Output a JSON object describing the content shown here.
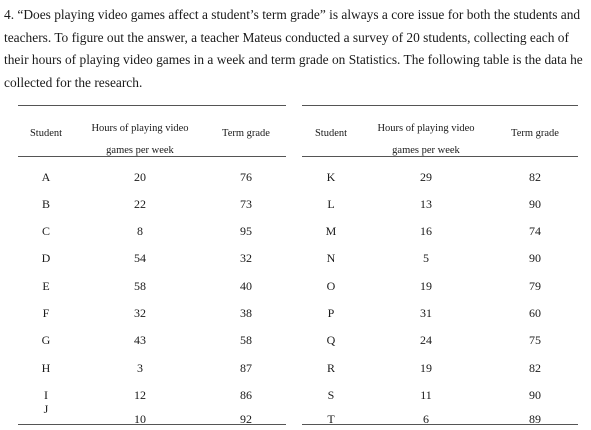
{
  "question": {
    "text": "4. “Does playing video games affect a student’s term grade” is always a core issue for both the students and teachers. To figure out the answer, a teacher Mateus conducted a survey of 20 students, collecting each of their hours of playing video games in a week and term grade on Statistics. The following table is the data he collected for the research."
  },
  "table": {
    "headers": {
      "student": "Student",
      "hours_line1": "Hours of playing video",
      "hours_line2": "games per week",
      "grade": "Term grade"
    },
    "left_rows": [
      {
        "student": "A",
        "hours": "20",
        "grade": "76"
      },
      {
        "student": "B",
        "hours": "22",
        "grade": "73"
      },
      {
        "student": "C",
        "hours": "8",
        "grade": "95"
      },
      {
        "student": "D",
        "hours": "54",
        "grade": "32"
      },
      {
        "student": "E",
        "hours": "58",
        "grade": "40"
      },
      {
        "student": "F",
        "hours": "32",
        "grade": "38"
      },
      {
        "student": "G",
        "hours": "43",
        "grade": "58"
      },
      {
        "student": "H",
        "hours": "3",
        "grade": "87"
      },
      {
        "student": "I",
        "hours": "12",
        "grade": "86"
      },
      {
        "student": "J",
        "hours": "10",
        "grade": "92"
      }
    ],
    "right_rows": [
      {
        "student": "K",
        "hours": "29",
        "grade": "82"
      },
      {
        "student": "L",
        "hours": "13",
        "grade": "90"
      },
      {
        "student": "M",
        "hours": "16",
        "grade": "74"
      },
      {
        "student": "N",
        "hours": "5",
        "grade": "90"
      },
      {
        "student": "O",
        "hours": "19",
        "grade": "79"
      },
      {
        "student": "P",
        "hours": "31",
        "grade": "60"
      },
      {
        "student": "Q",
        "hours": "24",
        "grade": "75"
      },
      {
        "student": "R",
        "hours": "19",
        "grade": "82"
      },
      {
        "student": "S",
        "hours": "11",
        "grade": "90"
      },
      {
        "student": "T",
        "hours": "6",
        "grade": "89"
      }
    ]
  }
}
